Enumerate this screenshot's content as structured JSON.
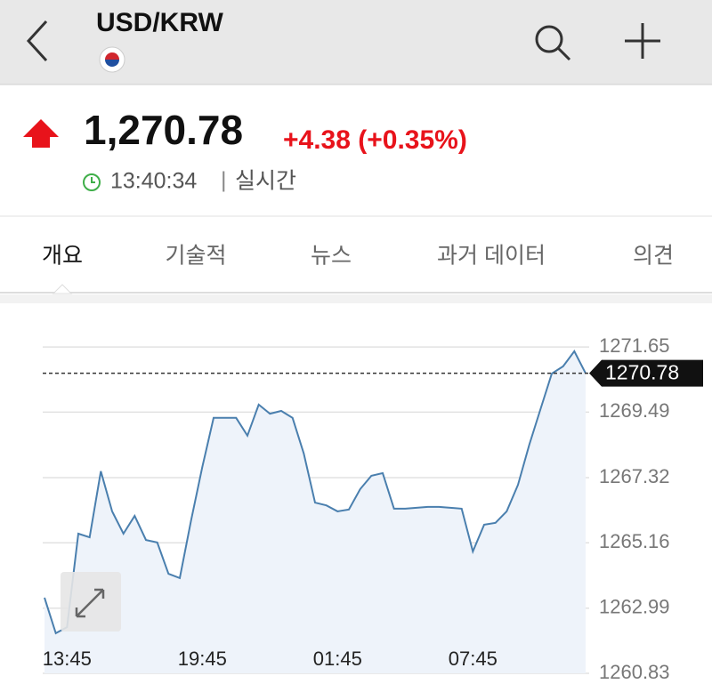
{
  "header": {
    "title": "USD/KRW"
  },
  "quote": {
    "price": "1,270.78",
    "change": "+4.38 (+0.35%)",
    "time": "13:40:34",
    "separator": "|",
    "status": "실시간"
  },
  "tabs": [
    "개요",
    "기술적",
    "뉴스",
    "과거 데이터",
    "의견"
  ],
  "chart_data": {
    "type": "line",
    "color": "#4a7fae",
    "grid": true,
    "categories": [
      null,
      null,
      "13:45",
      null,
      null,
      null,
      null,
      null,
      null,
      null,
      null,
      null,
      null,
      null,
      "19:45",
      null,
      null,
      null,
      null,
      null,
      null,
      null,
      null,
      null,
      null,
      null,
      "01:45",
      null,
      null,
      null,
      null,
      null,
      null,
      null,
      null,
      null,
      null,
      null,
      "07:45",
      null,
      null,
      null,
      null,
      null,
      null,
      null,
      null,
      null,
      null
    ],
    "values": [
      1263.34,
      1262.16,
      1262.36,
      1265.46,
      1265.34,
      1267.53,
      1266.2,
      1265.46,
      1266.05,
      1265.25,
      1265.17,
      1264.13,
      1263.99,
      1265.9,
      1267.67,
      1269.3,
      1269.3,
      1269.3,
      1268.71,
      1269.74,
      1269.44,
      1269.53,
      1269.3,
      1268.12,
      1266.49,
      1266.4,
      1266.2,
      1266.26,
      1266.94,
      1267.38,
      1267.47,
      1266.29,
      1266.29,
      1266.32,
      1266.35,
      1266.35,
      1266.32,
      1266.29,
      1264.87,
      1265.76,
      1265.82,
      1266.2,
      1267.08,
      1268.41,
      1269.59,
      1270.77,
      1271.01,
      1271.51,
      1270.78
    ],
    "ylim": [
      1260.83,
      1272.0
    ],
    "yticks": [
      1260.83,
      1262.99,
      1265.16,
      1267.32,
      1269.49,
      1271.65
    ],
    "current": 1270.78
  }
}
